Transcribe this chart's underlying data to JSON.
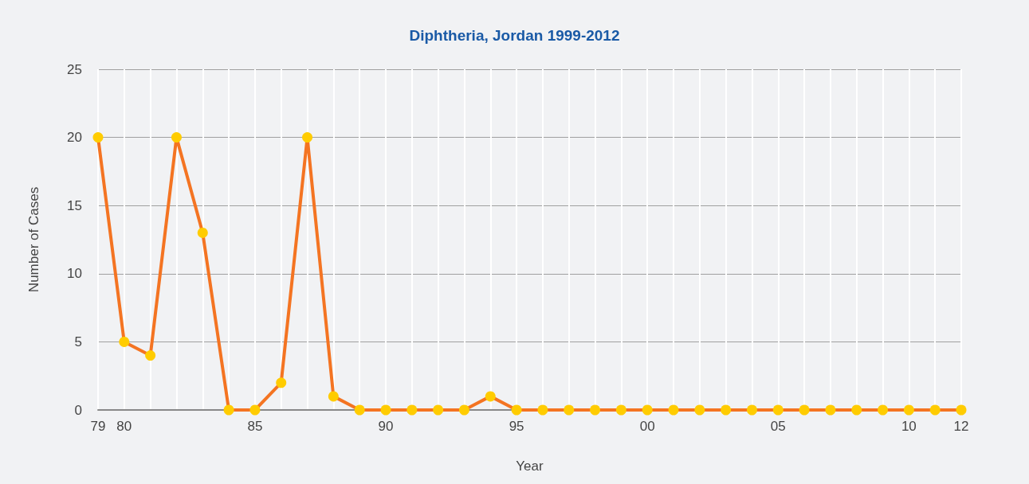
{
  "chart_data": {
    "type": "line",
    "title": "Diphtheria, Jordan 1999-2012",
    "xlabel": "Year",
    "ylabel": "Number of Cases",
    "categories": [
      "79",
      "80",
      null,
      null,
      null,
      null,
      "85",
      null,
      null,
      null,
      null,
      "90",
      null,
      null,
      null,
      null,
      "95",
      null,
      null,
      null,
      null,
      "00",
      null,
      null,
      null,
      null,
      "05",
      null,
      null,
      null,
      null,
      "10",
      null,
      "12"
    ],
    "series": [
      {
        "color": "#f47422",
        "colors": [
          "#ffcc00",
          "#ffcc00",
          "#ffcc00",
          "#ffcc00",
          "#ffcc00",
          "#ffcc00",
          "#ffcc00",
          "#ffcc00",
          "#ffcc00",
          "#ffcc00",
          "#ffcc00",
          "#ffcc00",
          "#ffcc00",
          "#ffcc00",
          "#ffcc00",
          "#ffcc00",
          "#ffcc00",
          "#ffcc00",
          "#ffcc00",
          "#ffcc00",
          "#ffcc00",
          "#ffcc00",
          "#ffcc00",
          "#ffcc00",
          "#ffcc00",
          "#ffcc00",
          "#ffcc00",
          "#ffcc00",
          "#ffcc00",
          "#ffcc00",
          "#ffcc00",
          "#ffcc00",
          "#ffcc00",
          "#ffcc00"
        ],
        "values": [
          20,
          5,
          4,
          20,
          13,
          0,
          0,
          2,
          20,
          1,
          0,
          0,
          0,
          0,
          0,
          1,
          0,
          0,
          0,
          0,
          0,
          0,
          0,
          0,
          0,
          0,
          0,
          0,
          0,
          0,
          0,
          0,
          0,
          0
        ]
      }
    ],
    "ylim": [
      0,
      25
    ],
    "yticks": [
      0,
      5,
      10,
      15,
      20,
      25
    ],
    "grid": true,
    "marker": "circle",
    "line_style": "solid"
  }
}
